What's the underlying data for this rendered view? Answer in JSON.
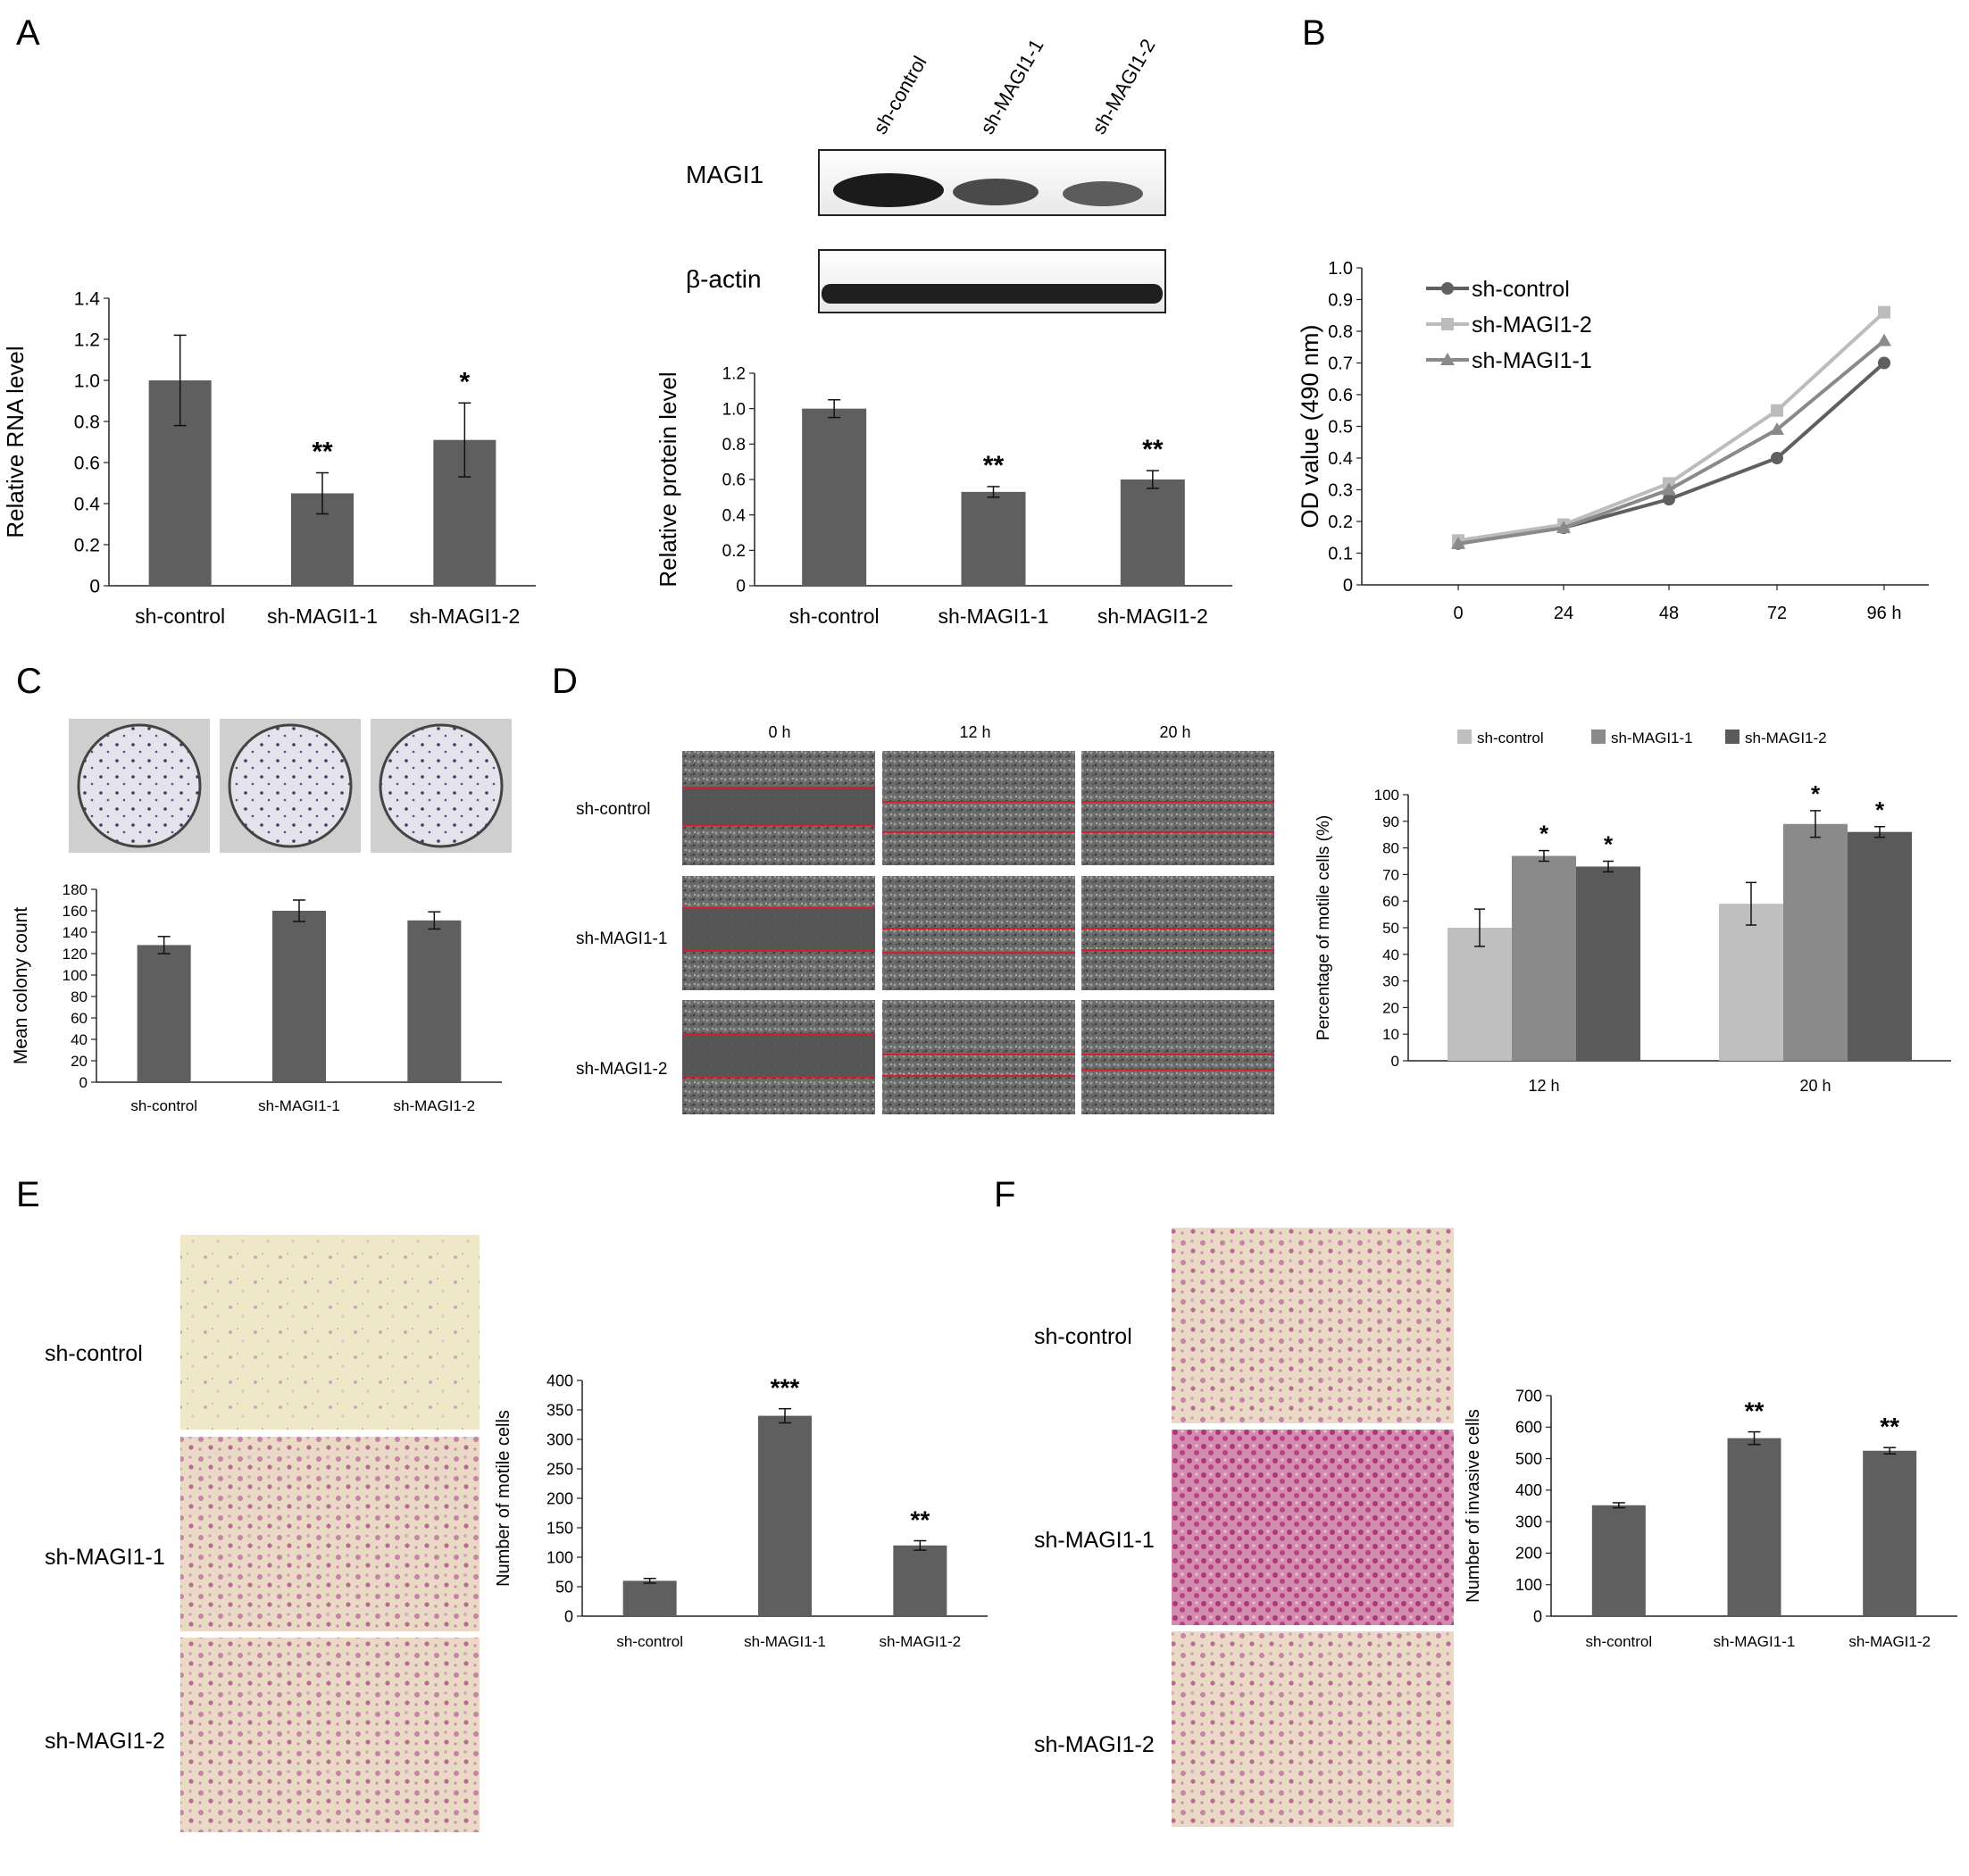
{
  "panels": {
    "A": {
      "letter": "A",
      "rna": {
        "ylabel": "Relative RNA level",
        "ylim": [
          0,
          1.4
        ],
        "yticks": [
          "0",
          "0.2",
          "0.4",
          "0.6",
          "0.8",
          "1.0",
          "1.2",
          "1.4"
        ],
        "categories": [
          "sh-control",
          "sh-MAGI1-1",
          "sh-MAGI1-2"
        ],
        "values": [
          1.0,
          0.45,
          0.71
        ],
        "errors": [
          0.22,
          0.1,
          0.18
        ],
        "stars": [
          "",
          "**",
          "*"
        ]
      },
      "western": {
        "lanes": [
          "sh-control",
          "sh-MAGI1-1",
          "sh-MAGI1-2"
        ],
        "rows": [
          "MAGI1",
          "β-actin"
        ]
      },
      "protein": {
        "ylabel": "Relative protein level",
        "ylim": [
          0,
          1.2
        ],
        "yticks": [
          "0",
          "0.2",
          "0.4",
          "0.6",
          "0.8",
          "1.0",
          "1.2"
        ],
        "categories": [
          "sh-control",
          "sh-MAGI1-1",
          "sh-MAGI1-2"
        ],
        "values": [
          1.0,
          0.53,
          0.6
        ],
        "errors": [
          0.05,
          0.03,
          0.05
        ],
        "stars": [
          "",
          "**",
          "**"
        ]
      }
    },
    "B": {
      "letter": "B",
      "ylabel": "OD value (490 nm)",
      "xticks": [
        "0",
        "24",
        "48",
        "72",
        "96  h"
      ],
      "yticks": [
        "0",
        "0.1",
        "0.2",
        "0.3",
        "0.4",
        "0.5",
        "0.6",
        "0.7",
        "0.8",
        "0.9",
        "1.0"
      ],
      "ylim": [
        0,
        1.0
      ]
    },
    "C": {
      "letter": "C",
      "ylabel": "Mean colony count",
      "ylim": [
        0,
        180
      ],
      "yticks": [
        "0",
        "20",
        "40",
        "60",
        "80",
        "100",
        "120",
        "140",
        "160",
        "180"
      ],
      "categories": [
        "sh-control",
        "sh-MAGI1-1",
        "sh-MAGI1-2"
      ],
      "values": [
        128,
        160,
        151
      ],
      "errors": [
        8,
        10,
        8
      ]
    },
    "D": {
      "letter": "D",
      "times": [
        "0 h",
        "12 h",
        "20 h"
      ],
      "rows": [
        "sh-control",
        "sh-MAGI1-1",
        "sh-MAGI1-2"
      ],
      "ylabel": "Percentage of motile cells (%)",
      "ylim": [
        0,
        100
      ],
      "yticks": [
        "0",
        "10",
        "20",
        "30",
        "40",
        "50",
        "60",
        "70",
        "80",
        "90",
        "100"
      ],
      "groups": [
        "12 h",
        "20 h"
      ],
      "legend": [
        "sh-control",
        "sh-MAGI1-1",
        "sh-MAGI1-2"
      ]
    },
    "E": {
      "letter": "E",
      "rows": [
        "sh-control",
        "sh-MAGI1-1",
        "sh-MAGI1-2"
      ],
      "ylabel": "Number of motile cells",
      "ylim": [
        0,
        400
      ],
      "yticks": [
        "0",
        "50",
        "100",
        "150",
        "200",
        "250",
        "300",
        "350",
        "400"
      ],
      "categories": [
        "sh-control",
        "sh-MAGI1-1",
        "sh-MAGI1-2"
      ],
      "values": [
        60,
        340,
        120
      ],
      "errors": [
        4,
        12,
        8
      ],
      "stars": [
        "",
        "***",
        "**"
      ]
    },
    "F": {
      "letter": "F",
      "rows": [
        "sh-control",
        "sh-MAGI1-1",
        "sh-MAGI1-2"
      ],
      "ylabel": "Number of invasive cells",
      "ylim": [
        0,
        700
      ],
      "yticks": [
        "0",
        "100",
        "200",
        "300",
        "400",
        "500",
        "600",
        "700"
      ],
      "categories": [
        "sh-control",
        "sh-MAGI1-1",
        "sh-MAGI1-2"
      ],
      "values": [
        352,
        565,
        525
      ],
      "errors": [
        8,
        20,
        10
      ],
      "stars": [
        "",
        "**",
        "**"
      ]
    }
  },
  "colors": {
    "bar": "#5f5f5f",
    "control": "#bfbfbf",
    "magi1_1": "#8a8a8a",
    "magi1_2": "#5a5a5a",
    "scratch_line": "#d21f2d",
    "stain_bg": "#ece4c2",
    "stain_cell": "#b55a8a"
  },
  "chart_data": [
    {
      "type": "bar",
      "panel": "A-left",
      "categories": [
        "sh-control",
        "sh-MAGI1-1",
        "sh-MAGI1-2"
      ],
      "values": [
        1.0,
        0.45,
        0.71
      ],
      "errors": [
        0.22,
        0.1,
        0.18
      ],
      "ylabel": "Relative RNA level",
      "ylim": [
        0,
        1.4
      ]
    },
    {
      "type": "bar",
      "panel": "A-right",
      "categories": [
        "sh-control",
        "sh-MAGI1-1",
        "sh-MAGI1-2"
      ],
      "values": [
        1.0,
        0.53,
        0.6
      ],
      "errors": [
        0.05,
        0.03,
        0.05
      ],
      "ylabel": "Relative protein level",
      "ylim": [
        0,
        1.2
      ]
    },
    {
      "type": "line",
      "panel": "B",
      "x": [
        0,
        24,
        48,
        72,
        96
      ],
      "series": [
        {
          "name": "sh-control",
          "values": [
            0.13,
            0.18,
            0.27,
            0.4,
            0.7
          ],
          "color": "#5f5f5f",
          "marker": "circle"
        },
        {
          "name": "sh-MAGI1-2",
          "values": [
            0.14,
            0.19,
            0.32,
            0.55,
            0.86
          ],
          "color": "#bcbcbc",
          "marker": "square"
        },
        {
          "name": "sh-MAGI1-1",
          "values": [
            0.13,
            0.18,
            0.3,
            0.49,
            0.77
          ],
          "color": "#8a8a8a",
          "marker": "triangle"
        }
      ],
      "ylabel": "OD value (490 nm)",
      "ylim": [
        0,
        1.0
      ],
      "legend": "top-left"
    },
    {
      "type": "bar",
      "panel": "C",
      "categories": [
        "sh-control",
        "sh-MAGI1-1",
        "sh-MAGI1-2"
      ],
      "values": [
        128,
        160,
        151
      ],
      "errors": [
        8,
        10,
        8
      ],
      "ylabel": "Mean colony count",
      "ylim": [
        0,
        180
      ]
    },
    {
      "type": "bar",
      "panel": "D",
      "categories": [
        "12 h",
        "20 h"
      ],
      "series": [
        {
          "name": "sh-control",
          "values": [
            50,
            59
          ],
          "errors": [
            7,
            8
          ]
        },
        {
          "name": "sh-MAGI1-1",
          "values": [
            77,
            89
          ],
          "errors": [
            2,
            5
          ]
        },
        {
          "name": "sh-MAGI1-2",
          "values": [
            73,
            86
          ],
          "errors": [
            2,
            2
          ]
        }
      ],
      "stars": [
        [
          "",
          "*",
          "*"
        ],
        [
          "",
          "*",
          "*"
        ]
      ],
      "ylabel": "Percentage of motile cells (%)",
      "ylim": [
        0,
        100
      ],
      "legend": "top"
    },
    {
      "type": "bar",
      "panel": "E",
      "categories": [
        "sh-control",
        "sh-MAGI1-1",
        "sh-MAGI1-2"
      ],
      "values": [
        60,
        340,
        120
      ],
      "errors": [
        4,
        12,
        8
      ],
      "ylabel": "Number of motile cells",
      "ylim": [
        0,
        400
      ]
    },
    {
      "type": "bar",
      "panel": "F",
      "categories": [
        "sh-control",
        "sh-MAGI1-1",
        "sh-MAGI1-2"
      ],
      "values": [
        352,
        565,
        525
      ],
      "errors": [
        8,
        20,
        10
      ],
      "ylabel": "Number of invasive cells",
      "ylim": [
        0,
        700
      ]
    }
  ]
}
